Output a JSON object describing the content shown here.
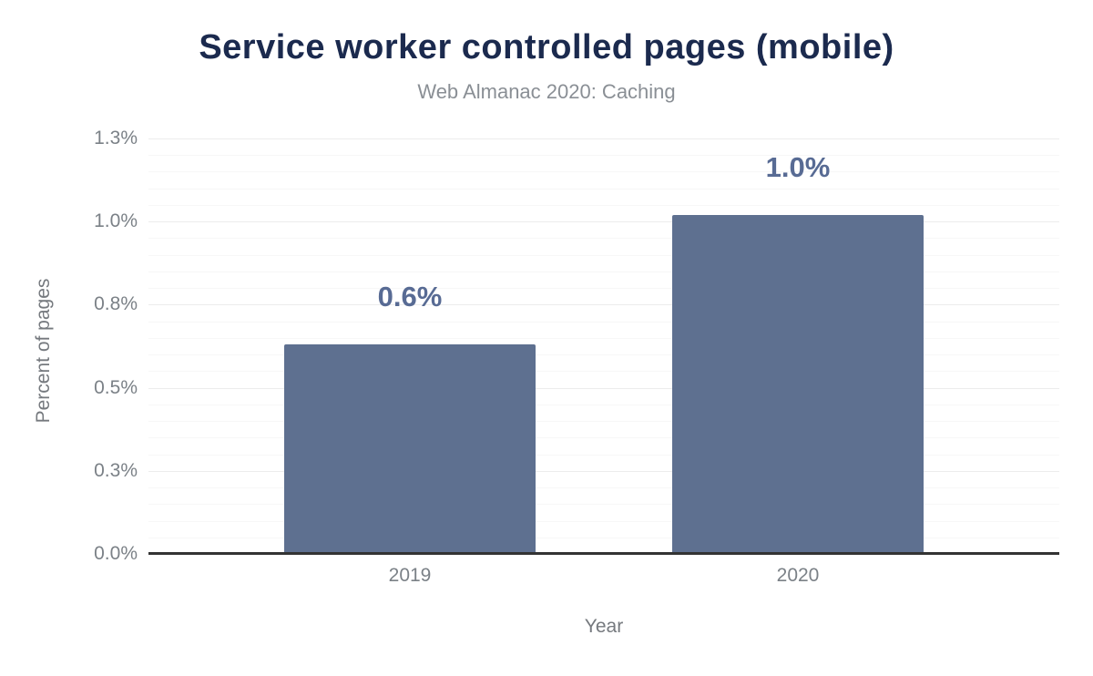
{
  "chart_data": {
    "type": "bar",
    "title": "Service worker controlled pages (mobile)",
    "subtitle": "Web Almanac 2020: Caching",
    "xlabel": "Year",
    "ylabel": "Percent of pages",
    "categories": [
      "2019",
      "2020"
    ],
    "values": [
      0.63,
      1.02
    ],
    "value_labels": [
      "0.6%",
      "1.0%"
    ],
    "unit": "percent",
    "ylim": [
      0,
      1.25
    ],
    "y_major_ticks": [
      {
        "value": 0.0,
        "label": "0.0%"
      },
      {
        "value": 0.25,
        "label": "0.3%"
      },
      {
        "value": 0.5,
        "label": "0.5%"
      },
      {
        "value": 0.75,
        "label": "0.8%"
      },
      {
        "value": 1.0,
        "label": "1.0%"
      },
      {
        "value": 1.25,
        "label": "1.3%"
      }
    ],
    "y_minor_step": 0.05,
    "grid": "on",
    "legend": "none",
    "colors": {
      "bar": "#5e7090",
      "bar_label": "#586b94",
      "title": "#1b2a4e",
      "subtitle": "#8a8f95",
      "tick_label": "#7b8187",
      "axis_label": "#75797e",
      "major_gridline": "#ececec",
      "minor_gridline": "#f7f7f7",
      "axis_line": "#333333"
    }
  }
}
